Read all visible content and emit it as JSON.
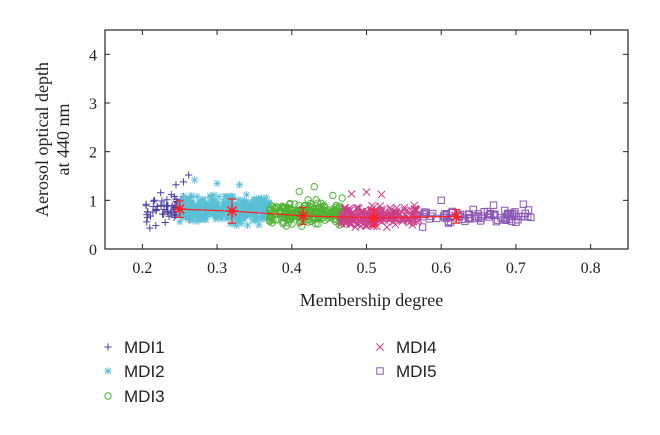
{
  "chart_data": {
    "type": "scatter",
    "xlabel": "Membership degree",
    "ylabel_lines": [
      "Aerosol optical depth",
      "at 440 nm"
    ],
    "xlim": [
      0.15,
      0.85
    ],
    "ylim": [
      0,
      4.5
    ],
    "xticks": [
      "0.2",
      "0.3",
      "0.4",
      "0.5",
      "0.6",
      "0.7",
      "0.8"
    ],
    "yticks": [
      "0",
      "1",
      "2",
      "3",
      "4"
    ],
    "grid": false,
    "legend_position": "bottom",
    "series": [
      {
        "name": "MDI1",
        "color": "#4b3fa0",
        "marker": "plus",
        "x_range": [
          0.205,
          0.268
        ],
        "y_center": 0.85,
        "y_spread": 0.38,
        "count": 70,
        "points": [
          [
            0.205,
            0.92
          ],
          [
            0.21,
            0.43
          ],
          [
            0.215,
            0.98
          ],
          [
            0.218,
            0.48
          ],
          [
            0.262,
            1.52
          ],
          [
            0.245,
            1.32
          ],
          [
            0.255,
            1.38
          ]
        ]
      },
      {
        "name": "MDI2",
        "color": "#5bc0d6",
        "marker": "asterisk",
        "x_range": [
          0.25,
          0.37
        ],
        "y_center": 0.82,
        "y_spread": 0.35,
        "count": 380,
        "points": [
          [
            0.27,
            1.42
          ],
          [
            0.3,
            1.35
          ],
          [
            0.33,
            1.32
          ]
        ]
      },
      {
        "name": "MDI3",
        "color": "#4fb233",
        "marker": "circle",
        "x_range": [
          0.37,
          0.47
        ],
        "y_center": 0.74,
        "y_spread": 0.28,
        "count": 230,
        "points": [
          [
            0.43,
            1.28
          ],
          [
            0.41,
            1.18
          ],
          [
            0.455,
            1.1
          ]
        ]
      },
      {
        "name": "MDI4",
        "color": "#cc3f8a",
        "marker": "x",
        "x_range": [
          0.465,
          0.57
        ],
        "y_center": 0.68,
        "y_spread": 0.27,
        "count": 200,
        "points": [
          [
            0.5,
            1.17
          ],
          [
            0.52,
            1.12
          ],
          [
            0.48,
            1.13
          ]
        ]
      },
      {
        "name": "MDI5",
        "color": "#8b56b4",
        "marker": "square",
        "x_range": [
          0.575,
          0.72
        ],
        "y_center": 0.68,
        "y_spread": 0.18,
        "count": 75,
        "points": [
          [
            0.575,
            0.45
          ],
          [
            0.6,
            1.0
          ],
          [
            0.67,
            0.9
          ],
          [
            0.71,
            0.92
          ],
          [
            0.72,
            0.65
          ],
          [
            0.7,
            0.55
          ]
        ]
      }
    ],
    "mean_line": {
      "color": "#ff2020",
      "points": [
        {
          "x": 0.25,
          "y": 0.82,
          "err": 0.17
        },
        {
          "x": 0.32,
          "y": 0.78,
          "err": 0.25
        },
        {
          "x": 0.415,
          "y": 0.68,
          "err": 0.17
        },
        {
          "x": 0.51,
          "y": 0.64,
          "err": 0.17
        },
        {
          "x": 0.62,
          "y": 0.67,
          "err": 0.14
        }
      ]
    }
  }
}
